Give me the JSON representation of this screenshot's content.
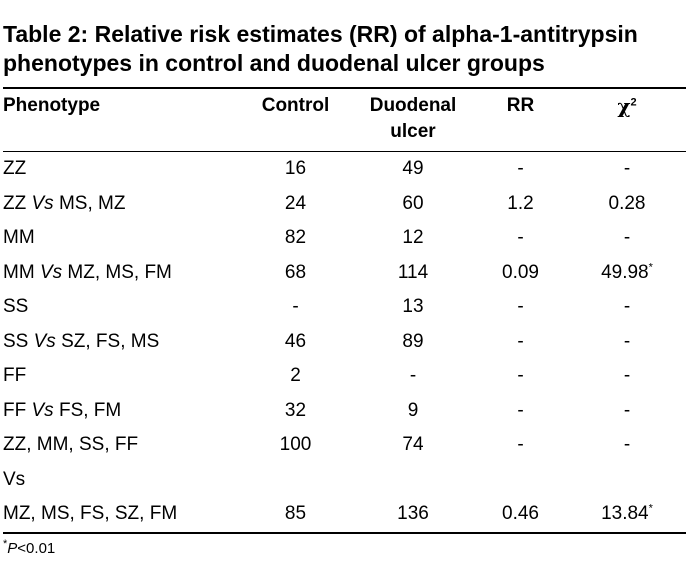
{
  "title_line1": "Table 2: Relative risk estimates (RR) of alpha-1-antitrypsin",
  "title_line2": "phenotypes in control and duodenal ulcer groups",
  "headers": {
    "phenotype": "Phenotype",
    "control": "Control",
    "duodenal_line1": "Duodenal",
    "duodenal_line2": "ulcer",
    "rr": "RR",
    "chi": "χ",
    "chi_sup": "2"
  },
  "rows": [
    {
      "pre": "ZZ",
      "vs": "",
      "post": "",
      "control": "16",
      "duodenal": "49",
      "rr": "-",
      "chi2": "-"
    },
    {
      "pre": "ZZ ",
      "vs": "Vs",
      "post": " MS, MZ",
      "control": "24",
      "duodenal": "60",
      "rr": "1.2",
      "chi2": "0.28"
    },
    {
      "pre": "MM",
      "vs": "",
      "post": "",
      "control": "82",
      "duodenal": "12",
      "rr": "-",
      "chi2": "-"
    },
    {
      "pre": "MM ",
      "vs": "Vs",
      "post": " MZ, MS, FM",
      "control": "68",
      "duodenal": "114",
      "rr": "0.09",
      "chi2": "49.98*"
    },
    {
      "pre": "SS",
      "vs": "",
      "post": "",
      "control": "-",
      "duodenal": "13",
      "rr": "-",
      "chi2": "-"
    },
    {
      "pre": "SS ",
      "vs": "Vs",
      "post": " SZ, FS, MS",
      "control": "46",
      "duodenal": "89",
      "rr": "-",
      "chi2": "-"
    },
    {
      "pre": "FF",
      "vs": "",
      "post": "",
      "control": "2",
      "duodenal": "-",
      "rr": "-",
      "chi2": "-"
    },
    {
      "pre": "FF ",
      "vs": "Vs",
      "post": " FS, FM",
      "control": "32",
      "duodenal": "9",
      "rr": "-",
      "chi2": "-"
    },
    {
      "pre": "ZZ, MM, SS, FF",
      "vs": "",
      "post": "",
      "control": "100",
      "duodenal": "74",
      "rr": "-",
      "chi2": "-"
    },
    {
      "pre": "Vs",
      "vs": "",
      "post": "",
      "control": "",
      "duodenal": "",
      "rr": "",
      "chi2": ""
    },
    {
      "pre": "MZ, MS, FS, SZ, FM",
      "vs": "",
      "post": "",
      "control": "85",
      "duodenal": "136",
      "rr": "0.46",
      "chi2": "13.84*"
    }
  ],
  "footnote": {
    "star": "*",
    "p": "P",
    "text": "<0.01"
  }
}
